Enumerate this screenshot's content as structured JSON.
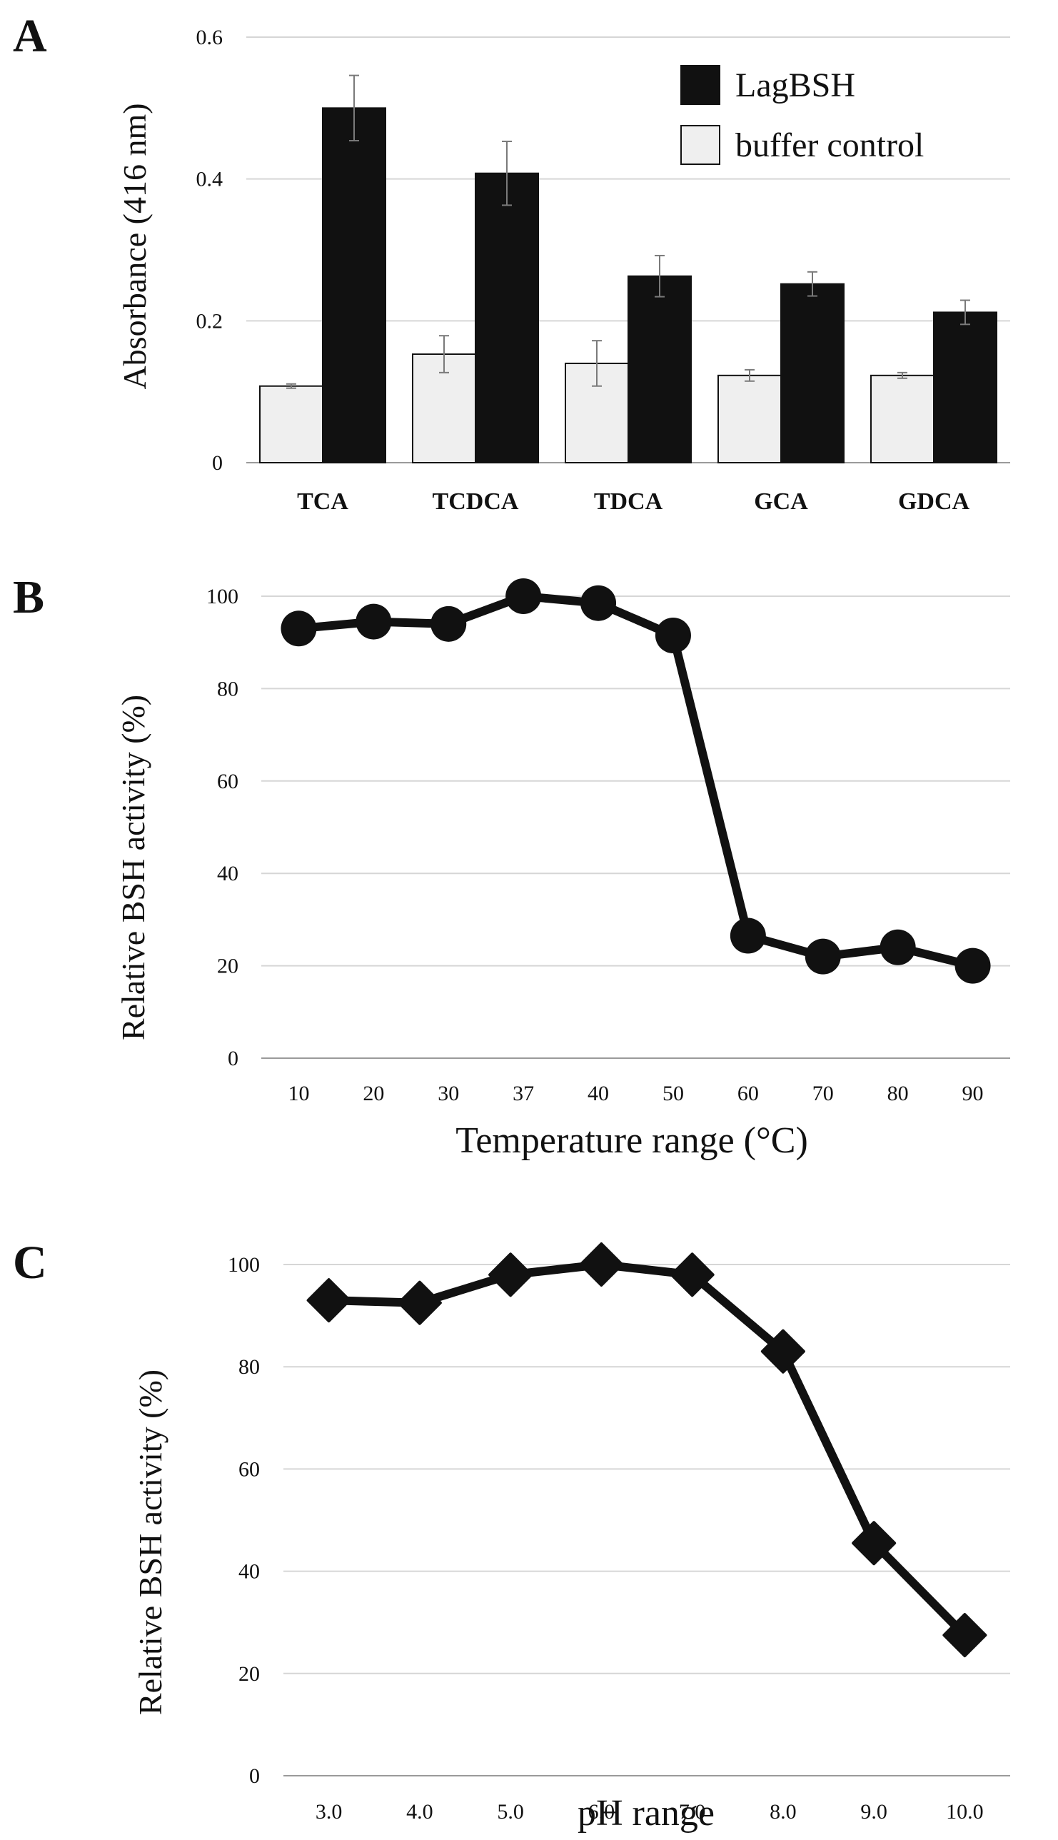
{
  "chart_data": [
    {
      "panel": "A",
      "type": "bar",
      "ylabel": "Absorbance (416 nm)",
      "xlabel": "",
      "ylim": [
        0,
        0.6
      ],
      "yticks": [
        "0",
        "0.2",
        "0.4",
        "0.6"
      ],
      "ytick_values": [
        0,
        0.2,
        0.4,
        0.6
      ],
      "grid": true,
      "legend_position": "top-right",
      "categories": [
        "TCA",
        "TCDCA",
        "TDCA",
        "GCA",
        "GDCA"
      ],
      "series": [
        {
          "name": "buffer control",
          "color": "#efefef",
          "values": [
            0.108,
            0.153,
            0.14,
            0.123,
            0.123
          ],
          "errors": [
            0.003,
            0.026,
            0.032,
            0.008,
            0.004
          ]
        },
        {
          "name": "LagBSH",
          "color": "#111111",
          "values": [
            0.5,
            0.408,
            0.263,
            0.252,
            0.212
          ],
          "errors": [
            0.046,
            0.045,
            0.029,
            0.017,
            0.017
          ]
        }
      ],
      "legend_order": [
        "LagBSH",
        "buffer control"
      ]
    },
    {
      "panel": "B",
      "type": "line",
      "marker": "circle",
      "ylabel": "Relative BSH activity (%)",
      "xlabel": "Temperature range (°C)",
      "ylim": [
        0,
        100
      ],
      "yticks": [
        "0",
        "20",
        "40",
        "60",
        "80",
        "100"
      ],
      "ytick_values": [
        0,
        20,
        40,
        60,
        80,
        100
      ],
      "grid": true,
      "categories": [
        "10",
        "20",
        "30",
        "37",
        "40",
        "50",
        "60",
        "70",
        "80",
        "90"
      ],
      "values": [
        93,
        94.5,
        94,
        100,
        98.5,
        91.5,
        26.5,
        22,
        24,
        20
      ]
    },
    {
      "panel": "C",
      "type": "line",
      "marker": "diamond",
      "ylabel": "Relative BSH activity (%)",
      "xlabel": "pH range",
      "ylim": [
        0,
        100
      ],
      "yticks": [
        "0",
        "20",
        "40",
        "60",
        "80",
        "100"
      ],
      "ytick_values": [
        0,
        20,
        40,
        60,
        80,
        100
      ],
      "grid": true,
      "categories": [
        "3.0",
        "4.0",
        "5.0",
        "6.0",
        "7.0",
        "8.0",
        "9.0",
        "10.0"
      ],
      "values": [
        93,
        92.5,
        98,
        100,
        98,
        83,
        45.5,
        27.5
      ]
    }
  ]
}
